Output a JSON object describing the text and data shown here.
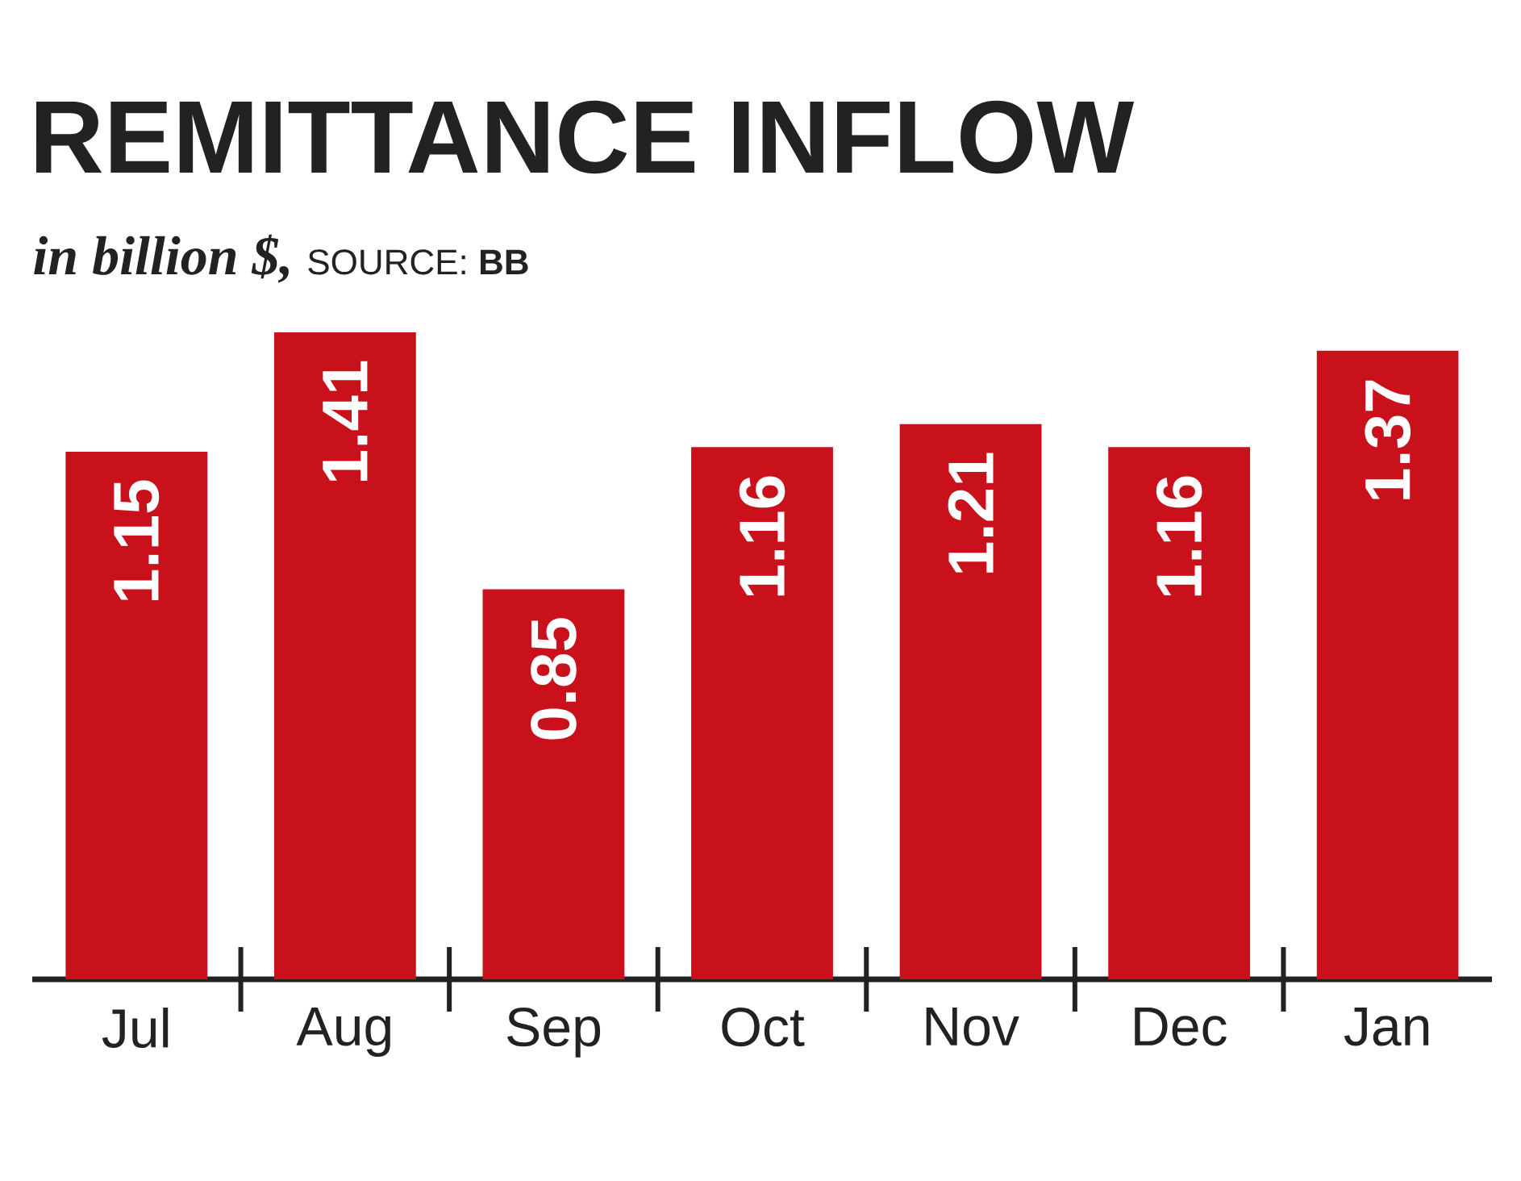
{
  "chart_data": {
    "type": "bar",
    "title": "REMITTANCE INFLOW",
    "subtitle": "in billion $,",
    "annotations": [
      "SOURCE: **BB**"
    ],
    "categories": [
      "Jul",
      "Aug",
      "Sep",
      "Oct",
      "Nov",
      "Dec",
      "Jan"
    ],
    "values": [
      1.15,
      1.41,
      0.85,
      1.16,
      1.21,
      1.16,
      1.37
    ],
    "color": "#c8111b",
    "data_labels": true
  }
}
